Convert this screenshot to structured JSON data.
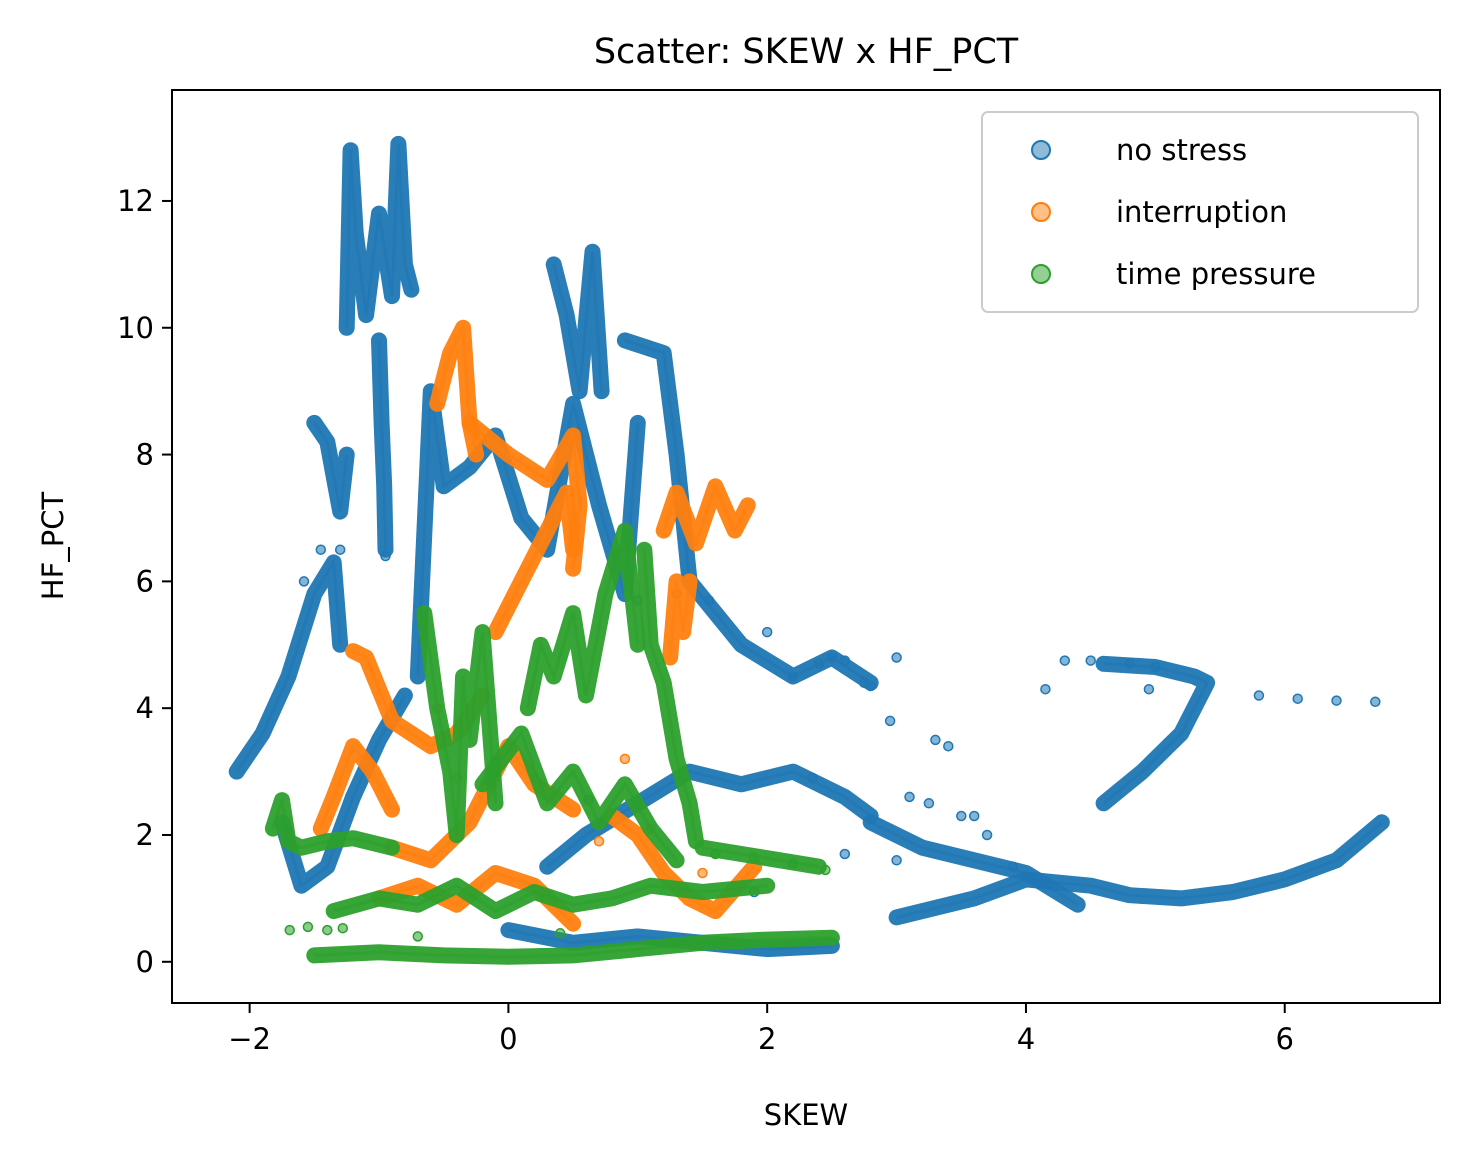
{
  "chart_data": {
    "type": "scatter",
    "title": "Scatter: SKEW x HF_PCT",
    "xlabel": "SKEW",
    "ylabel": "HF_PCT",
    "xlim": [
      -2.6,
      7.2
    ],
    "ylim": [
      -0.65,
      13.75
    ],
    "xticks": [
      -2,
      0,
      2,
      4,
      6
    ],
    "yticks": [
      0,
      2,
      4,
      6,
      8,
      10,
      12
    ],
    "xtick_labels": [
      "−2",
      "0",
      "2",
      "4",
      "6"
    ],
    "ytick_labels": [
      "0",
      "2",
      "4",
      "6",
      "8",
      "10",
      "12"
    ],
    "legend_position": "top-right",
    "series": [
      {
        "name": "no stress",
        "color": "#1f77b4",
        "trails": [
          [
            [
              -2.1,
              3.0
            ],
            [
              -1.9,
              3.6
            ],
            [
              -1.7,
              4.5
            ],
            [
              -1.5,
              5.8
            ],
            [
              -1.35,
              6.3
            ],
            [
              -1.3,
              5.0
            ]
          ],
          [
            [
              -1.75,
              2.2
            ],
            [
              -1.6,
              1.2
            ],
            [
              -1.4,
              1.5
            ],
            [
              -1.2,
              2.6
            ],
            [
              -1.0,
              3.5
            ],
            [
              -0.8,
              4.2
            ]
          ],
          [
            [
              -1.5,
              8.5
            ],
            [
              -1.4,
              8.2
            ],
            [
              -1.3,
              7.1
            ],
            [
              -1.25,
              8.0
            ]
          ],
          [
            [
              -1.25,
              10.0
            ],
            [
              -1.22,
              12.8
            ],
            [
              -1.18,
              11.5
            ],
            [
              -1.1,
              10.2
            ],
            [
              -1.0,
              11.8
            ],
            [
              -0.9,
              10.5
            ],
            [
              -0.85,
              12.9
            ],
            [
              -0.8,
              11.0
            ],
            [
              -0.75,
              10.6
            ]
          ],
          [
            [
              -1.0,
              9.8
            ],
            [
              -0.98,
              8.5
            ],
            [
              -0.96,
              7.5
            ],
            [
              -0.95,
              6.5
            ]
          ],
          [
            [
              -0.7,
              4.5
            ],
            [
              -0.6,
              9.0
            ],
            [
              -0.5,
              7.5
            ],
            [
              -0.3,
              7.8
            ],
            [
              -0.1,
              8.3
            ],
            [
              0.1,
              7.0
            ],
            [
              0.3,
              6.5
            ],
            [
              0.5,
              8.8
            ],
            [
              0.7,
              7.2
            ],
            [
              0.9,
              5.8
            ],
            [
              1.0,
              8.5
            ]
          ],
          [
            [
              0.35,
              11.0
            ],
            [
              0.45,
              10.2
            ],
            [
              0.55,
              9.0
            ],
            [
              0.65,
              11.2
            ],
            [
              0.72,
              9.0
            ]
          ],
          [
            [
              0.3,
              1.5
            ],
            [
              0.6,
              2.0
            ],
            [
              1.0,
              2.5
            ],
            [
              1.4,
              3.0
            ],
            [
              1.8,
              2.8
            ],
            [
              2.2,
              3.0
            ],
            [
              2.6,
              2.6
            ],
            [
              2.8,
              2.3
            ]
          ],
          [
            [
              1.4,
              6.0
            ],
            [
              1.8,
              5.0
            ],
            [
              2.2,
              4.5
            ],
            [
              2.5,
              4.8
            ],
            [
              2.8,
              4.4
            ]
          ],
          [
            [
              2.8,
              2.2
            ],
            [
              3.2,
              1.8
            ],
            [
              3.6,
              1.6
            ],
            [
              4.0,
              1.4
            ],
            [
              4.4,
              0.9
            ]
          ],
          [
            [
              3.0,
              0.7
            ],
            [
              3.6,
              1.0
            ],
            [
              4.0,
              1.3
            ],
            [
              4.5,
              1.2
            ],
            [
              4.8,
              1.05
            ],
            [
              5.2,
              1.0
            ],
            [
              5.6,
              1.1
            ],
            [
              6.0,
              1.3
            ],
            [
              6.4,
              1.6
            ],
            [
              6.75,
              2.2
            ]
          ],
          [
            [
              4.6,
              2.5
            ],
            [
              4.9,
              3.0
            ],
            [
              5.2,
              3.6
            ],
            [
              5.4,
              4.4
            ],
            [
              5.3,
              4.5
            ],
            [
              5.0,
              4.65
            ],
            [
              4.6,
              4.7
            ]
          ],
          [
            [
              0.9,
              9.8
            ],
            [
              1.2,
              9.6
            ],
            [
              1.3,
              8.0
            ],
            [
              1.4,
              6.0
            ]
          ],
          [
            [
              0.0,
              0.5
            ],
            [
              0.5,
              0.3
            ],
            [
              1.0,
              0.4
            ],
            [
              1.5,
              0.3
            ],
            [
              2.0,
              0.2
            ],
            [
              2.5,
              0.25
            ]
          ]
        ],
        "scatter": [
          [
            -1.58,
            6.0
          ],
          [
            -1.45,
            6.5
          ],
          [
            -1.3,
            6.5
          ],
          [
            -0.95,
            6.4
          ],
          [
            1.0,
            5.7
          ],
          [
            1.3,
            5.8
          ],
          [
            1.55,
            5.7
          ],
          [
            2.2,
            4.5
          ],
          [
            2.4,
            4.7
          ],
          [
            2.5,
            4.8
          ],
          [
            2.6,
            4.75
          ],
          [
            2.75,
            4.4
          ],
          [
            2.8,
            4.35
          ],
          [
            3.0,
            4.8
          ],
          [
            2.95,
            3.8
          ],
          [
            3.3,
            3.5
          ],
          [
            3.4,
            3.4
          ],
          [
            3.6,
            2.3
          ],
          [
            3.9,
            1.5
          ],
          [
            4.15,
            4.3
          ],
          [
            4.3,
            4.75
          ],
          [
            4.5,
            4.75
          ],
          [
            4.8,
            4.7
          ],
          [
            4.95,
            4.3
          ],
          [
            5.0,
            4.65
          ],
          [
            5.8,
            4.2
          ],
          [
            6.1,
            4.15
          ],
          [
            6.4,
            4.12
          ],
          [
            6.7,
            4.1
          ],
          [
            0.62,
            2.55
          ],
          [
            2.35,
            2.9
          ],
          [
            2.6,
            1.7
          ],
          [
            2.0,
            5.2
          ],
          [
            1.9,
            1.1
          ],
          [
            3.0,
            1.6
          ],
          [
            3.1,
            2.6
          ],
          [
            3.25,
            2.5
          ],
          [
            3.5,
            2.3
          ],
          [
            3.7,
            2.0
          ]
        ]
      },
      {
        "name": "interruption",
        "color": "#ff7f0e",
        "trails": [
          [
            [
              -0.55,
              8.8
            ],
            [
              -0.45,
              9.6
            ],
            [
              -0.35,
              10.0
            ],
            [
              -0.3,
              8.5
            ],
            [
              -0.25,
              8.0
            ]
          ],
          [
            [
              -0.3,
              8.5
            ],
            [
              0.0,
              8.0
            ],
            [
              0.3,
              7.6
            ],
            [
              0.5,
              8.3
            ],
            [
              0.55,
              7.2
            ],
            [
              0.5,
              6.2
            ]
          ],
          [
            [
              -0.1,
              5.2
            ],
            [
              0.1,
              6.0
            ],
            [
              0.3,
              6.8
            ],
            [
              0.45,
              7.4
            ],
            [
              0.5,
              6.5
            ]
          ],
          [
            [
              -1.2,
              4.9
            ],
            [
              -1.1,
              4.8
            ],
            [
              -0.9,
              3.8
            ],
            [
              -0.6,
              3.4
            ],
            [
              -0.4,
              3.6
            ],
            [
              -0.2,
              4.2
            ]
          ],
          [
            [
              -1.45,
              2.1
            ],
            [
              -1.35,
              2.6
            ],
            [
              -1.2,
              3.4
            ],
            [
              -1.05,
              3.0
            ],
            [
              -0.9,
              2.4
            ]
          ],
          [
            [
              -0.9,
              1.8
            ],
            [
              -0.6,
              1.6
            ],
            [
              -0.3,
              2.2
            ],
            [
              0.0,
              3.4
            ],
            [
              0.2,
              2.8
            ],
            [
              0.5,
              2.4
            ]
          ],
          [
            [
              -1.0,
              1.0
            ],
            [
              -0.7,
              1.2
            ],
            [
              -0.4,
              0.9
            ],
            [
              -0.1,
              1.4
            ],
            [
              0.2,
              1.2
            ],
            [
              0.5,
              0.6
            ]
          ],
          [
            [
              0.8,
              2.3
            ],
            [
              1.0,
              2.0
            ],
            [
              1.2,
              1.4
            ],
            [
              1.4,
              1.0
            ],
            [
              1.6,
              0.8
            ],
            [
              1.9,
              1.5
            ]
          ],
          [
            [
              1.2,
              6.8
            ],
            [
              1.3,
              7.4
            ],
            [
              1.45,
              6.6
            ],
            [
              1.6,
              7.5
            ],
            [
              1.75,
              6.8
            ],
            [
              1.85,
              7.2
            ]
          ],
          [
            [
              1.25,
              4.8
            ],
            [
              1.3,
              6.0
            ],
            [
              1.35,
              5.2
            ],
            [
              1.4,
              6.0
            ]
          ]
        ],
        "scatter": [
          [
            -0.55,
            4.0
          ],
          [
            -0.4,
            2.9
          ],
          [
            0.9,
            3.2
          ],
          [
            1.1,
            2.1
          ],
          [
            1.5,
            1.4
          ],
          [
            0.7,
            1.9
          ]
        ]
      },
      {
        "name": "time pressure",
        "color": "#2ca02c",
        "trails": [
          [
            [
              -1.82,
              2.1
            ],
            [
              -1.75,
              2.55
            ],
            [
              -1.7,
              1.9
            ],
            [
              -1.6,
              1.8
            ],
            [
              -1.4,
              1.9
            ],
            [
              -1.2,
              1.95
            ],
            [
              -0.9,
              1.8
            ]
          ],
          [
            [
              -1.5,
              0.1
            ],
            [
              -1.0,
              0.15
            ],
            [
              -0.5,
              0.1
            ],
            [
              0.0,
              0.08
            ],
            [
              0.5,
              0.1
            ],
            [
              1.0,
              0.2
            ],
            [
              1.5,
              0.3
            ],
            [
              2.0,
              0.35
            ],
            [
              2.5,
              0.38
            ]
          ],
          [
            [
              -1.35,
              0.8
            ],
            [
              -1.0,
              1.0
            ],
            [
              -0.7,
              0.9
            ],
            [
              -0.4,
              1.2
            ],
            [
              -0.1,
              0.8
            ],
            [
              0.2,
              1.1
            ],
            [
              0.5,
              0.9
            ],
            [
              0.8,
              1.0
            ],
            [
              1.1,
              1.2
            ],
            [
              1.5,
              1.1
            ],
            [
              2.0,
              1.2
            ]
          ],
          [
            [
              -0.65,
              5.5
            ],
            [
              -0.55,
              4.0
            ],
            [
              -0.45,
              3.0
            ],
            [
              -0.4,
              2.0
            ],
            [
              -0.35,
              4.5
            ],
            [
              -0.3,
              3.5
            ],
            [
              -0.2,
              5.2
            ],
            [
              -0.1,
              2.5
            ]
          ],
          [
            [
              0.15,
              4.0
            ],
            [
              0.25,
              5.0
            ],
            [
              0.35,
              4.5
            ],
            [
              0.5,
              5.5
            ],
            [
              0.6,
              4.2
            ],
            [
              0.75,
              5.8
            ],
            [
              0.9,
              6.8
            ],
            [
              1.0,
              5.0
            ]
          ],
          [
            [
              1.05,
              6.5
            ],
            [
              1.1,
              5.0
            ],
            [
              1.2,
              4.4
            ],
            [
              1.3,
              3.2
            ],
            [
              1.4,
              2.5
            ],
            [
              1.45,
              1.9
            ]
          ],
          [
            [
              -0.2,
              2.8
            ],
            [
              0.1,
              3.6
            ],
            [
              0.3,
              2.5
            ],
            [
              0.5,
              3.0
            ],
            [
              0.7,
              2.2
            ],
            [
              0.9,
              2.8
            ],
            [
              1.1,
              2.1
            ],
            [
              1.3,
              1.6
            ]
          ],
          [
            [
              1.5,
              1.8
            ],
            [
              1.8,
              1.7
            ],
            [
              2.1,
              1.6
            ],
            [
              2.4,
              1.5
            ]
          ]
        ],
        "scatter": [
          [
            -1.69,
            0.5
          ],
          [
            -1.55,
            0.55
          ],
          [
            -1.4,
            0.5
          ],
          [
            -1.28,
            0.53
          ],
          [
            1.6,
            1.7
          ],
          [
            1.9,
            1.65
          ],
          [
            2.2,
            1.55
          ],
          [
            2.45,
            1.45
          ],
          [
            -0.7,
            0.4
          ],
          [
            0.4,
            0.45
          ]
        ]
      }
    ]
  }
}
